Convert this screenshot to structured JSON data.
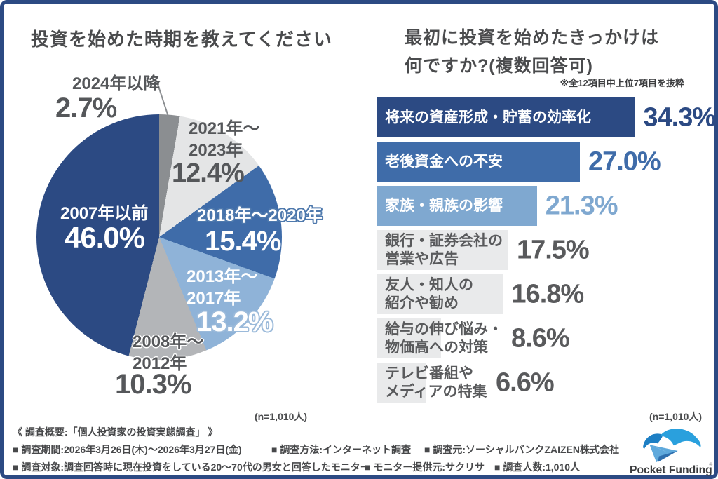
{
  "left_panel": {
    "title": "投資を始めた時期を教えてください",
    "n_label": "(n=1,010人)"
  },
  "right_panel": {
    "title_line1": "最初に投資を始めたきっかけは",
    "title_line2": "何ですか?(複数回答可)",
    "note": "※全12項目中上位7項目を抜粋",
    "n_label": "(n=1,010人)"
  },
  "chart_data": [
    {
      "type": "pie",
      "title": "投資を始めた時期を教えてください",
      "n": "(n=1,010人)",
      "start_angle_deg": 0,
      "direction": "clockwise",
      "slices": [
        {
          "label": "2024年以降",
          "label_lines": [
            "2024年以降"
          ],
          "value": 2.7,
          "pct": "2.7%",
          "color": "#8b8e91"
        },
        {
          "label": "2021年〜2023年",
          "label_lines": [
            "2021年〜",
            "2023年"
          ],
          "value": 12.4,
          "pct": "12.4%",
          "color": "#e4e5e6"
        },
        {
          "label": "2018年〜2020年",
          "label_lines": [
            "2018年〜2020年"
          ],
          "value": 15.4,
          "pct": "15.4%",
          "color": "#3f6ca9"
        },
        {
          "label": "2013年〜2017年",
          "label_lines": [
            "2013年〜",
            "2017年"
          ],
          "value": 13.2,
          "pct": "13.2%",
          "color": "#8fb3d8"
        },
        {
          "label": "2008年〜2012年",
          "label_lines": [
            "2008年〜",
            "2012年"
          ],
          "value": 10.3,
          "pct": "10.3%",
          "color": "#b3b5b8"
        },
        {
          "label": "2007年以前",
          "label_lines": [
            "2007年以前"
          ],
          "value": 46.0,
          "pct": "46.0%",
          "color": "#2c4a83"
        }
      ]
    },
    {
      "type": "bar",
      "orientation": "horizontal",
      "title": "最初に投資を始めたきっかけは何ですか?(複数回答可)",
      "note": "※全12項目中上位7項目を抜粋",
      "n": "(n=1,010人)",
      "xlim": [
        0,
        40
      ],
      "bars": [
        {
          "label": "将来の資産形成・貯蓄の効率化",
          "label_lines": [
            "将来の資産形成・貯蓄の効率化"
          ],
          "value": 34.3,
          "pct": "34.3%",
          "bar_color": "#2c4a83",
          "label_color": "#ffffff",
          "pct_color": "#2c4a83"
        },
        {
          "label": "老後資金への不安",
          "label_lines": [
            "老後資金への不安"
          ],
          "value": 27.0,
          "pct": "27.0%",
          "bar_color": "#3f6ca9",
          "label_color": "#ffffff",
          "pct_color": "#3f6ca9"
        },
        {
          "label": "家族・親族の影響",
          "label_lines": [
            "家族・親族の影響"
          ],
          "value": 21.3,
          "pct": "21.3%",
          "bar_color": "#7fa8d0",
          "label_color": "#ffffff",
          "pct_color": "#7fa8d0"
        },
        {
          "label": "銀行・証券会社の営業や広告",
          "label_lines": [
            "銀行・証券会社の",
            "営業や広告"
          ],
          "value": 17.5,
          "pct": "17.5%",
          "bar_color": "#e9eaeb",
          "label_color": "#595a5c",
          "pct_color": "#595a5c"
        },
        {
          "label": "友人・知人の紹介や勧め",
          "label_lines": [
            "友人・知人の",
            "紹介や勧め"
          ],
          "value": 16.8,
          "pct": "16.8%",
          "bar_color": "#e9eaeb",
          "label_color": "#595a5c",
          "pct_color": "#595a5c"
        },
        {
          "label": "給与の伸び悩み・物価高への対策",
          "label_lines": [
            "給与の伸び悩み・",
            "物価高への対策"
          ],
          "value": 8.6,
          "pct": "8.6%",
          "bar_color": "#e9eaeb",
          "label_color": "#595a5c",
          "pct_color": "#595a5c"
        },
        {
          "label": "テレビ番組やメディアの特集",
          "label_lines": [
            "テレビ番組や",
            "メディアの特集"
          ],
          "value": 6.6,
          "pct": "6.6%",
          "bar_color": "#e9eaeb",
          "label_color": "#595a5c",
          "pct_color": "#595a5c"
        }
      ]
    }
  ],
  "footer": {
    "heading": "《 調査概要:「個人投資家の投資実態調査」 》",
    "items_row1": [
      "■ 調査期間:2026年3月26日(木)〜2026年3月27日(金)",
      "■ 調査方法:インターネット調査",
      "■ 調査元:ソーシャルバンクZAIZEN株式会社"
    ],
    "items_row2": [
      "■ 調査対象:調査回答時に現在投資をしている20〜70代の男女と回答したモニター",
      "■ モニター提供元:サクリサ",
      "■ 調査人数:1,010人"
    ]
  },
  "logo": {
    "name": "Pocket Funding",
    "registered_mark": "®"
  },
  "colors": {
    "frame_border": "#2c4a83",
    "navy": "#2c4a83",
    "medium_blue": "#3f6ca9",
    "light_blue_bar": "#7fa8d0",
    "light_blue_pie": "#8fb3d8",
    "light_gray": "#e4e5e6",
    "mid_gray": "#b3b5b8",
    "dark_gray": "#8b8e91",
    "text_dark": "#4a4b4d"
  }
}
